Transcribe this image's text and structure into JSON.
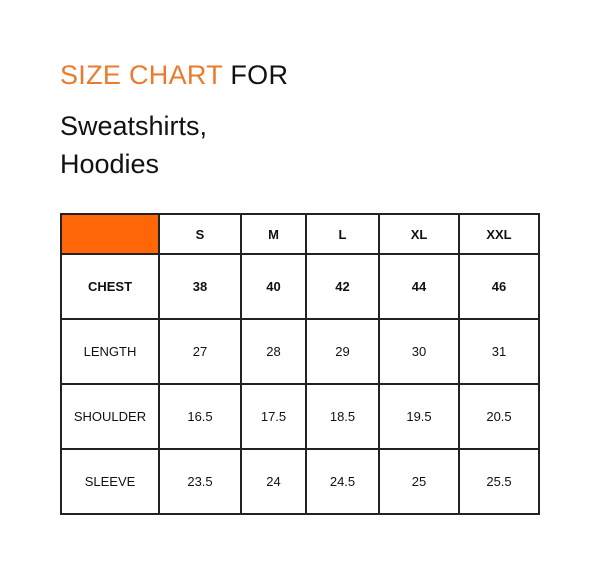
{
  "title": {
    "highlight": "SIZE CHART",
    "rest": "FOR"
  },
  "subtitle": {
    "line1": "Sweatshirts,",
    "line2": "Hoodies"
  },
  "colors": {
    "accent": "#ec7a2c",
    "header_cell": "#ff6608"
  },
  "table": {
    "columns": [
      "S",
      "M",
      "L",
      "XL",
      "XXL"
    ],
    "rows": [
      {
        "label": "CHEST",
        "values": [
          "38",
          "40",
          "42",
          "44",
          "46"
        ]
      },
      {
        "label": "LENGTH",
        "values": [
          "27",
          "28",
          "29",
          "30",
          "31"
        ]
      },
      {
        "label": "SHOULDER",
        "values": [
          "16.5",
          "17.5",
          "18.5",
          "19.5",
          "20.5"
        ]
      },
      {
        "label": "SLEEVE",
        "values": [
          "23.5",
          "24",
          "24.5",
          "25",
          "25.5"
        ]
      }
    ]
  }
}
